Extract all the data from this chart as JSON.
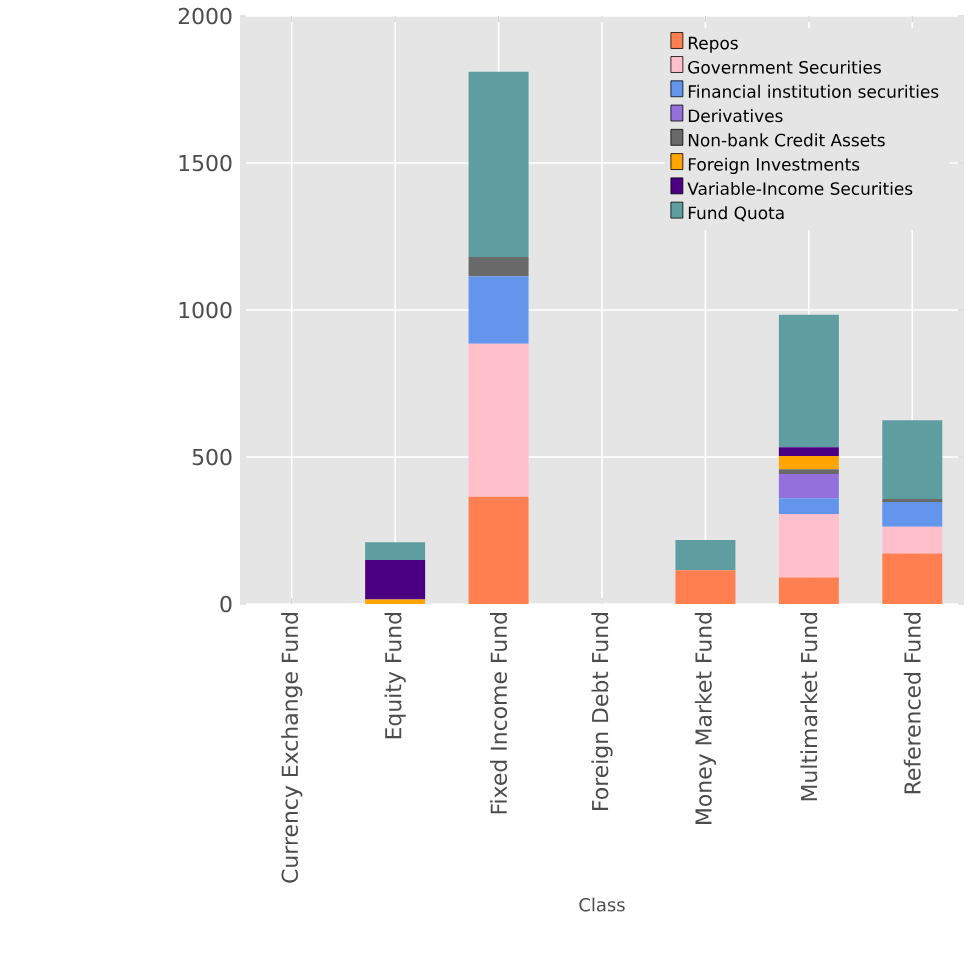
{
  "chart_data": {
    "type": "bar",
    "stacked": true,
    "xlabel": "Class",
    "categories": [
      "Currency Exchange Fund",
      "Equity Fund",
      "Fixed Income Fund",
      "Foreign Debt Fund",
      "Money Market Fund",
      "Multimarket Fund",
      "Referenced Fund"
    ],
    "series": [
      {
        "name": "Repos",
        "color": "#ff7f50",
        "values": [
          0,
          0,
          365,
          0,
          115,
          90,
          172
        ]
      },
      {
        "name": "Government Securities",
        "color": "#ffc0cb",
        "values": [
          0,
          null,
          520,
          0,
          0,
          216,
          91
        ]
      },
      {
        "name": "Financial institution securities",
        "color": "#6495ed",
        "values": [
          0,
          0,
          230,
          0,
          0,
          54,
          84
        ]
      },
      {
        "name": "Derivatives",
        "color": "#9370db",
        "values": [
          0,
          null,
          0,
          0,
          0,
          82,
          0
        ]
      },
      {
        "name": "Non-bank Credit Assets",
        "color": "#696969",
        "values": [
          0,
          0,
          65,
          0,
          0,
          16,
          10
        ]
      },
      {
        "name": "Foreign Investments",
        "color": "#ffa500",
        "values": [
          0,
          15,
          0,
          0,
          0,
          45,
          0
        ]
      },
      {
        "name": "Variable-Income Securities",
        "color": "#4b0082",
        "values": [
          0,
          135,
          0,
          0,
          0,
          30,
          0
        ]
      },
      {
        "name": "Fund Quota",
        "color": "#5f9ea0",
        "values": [
          0,
          60,
          630,
          0,
          103,
          451,
          268
        ]
      }
    ],
    "ylim": [
      0,
      2000
    ],
    "yticks": [
      0,
      500,
      1000,
      1500,
      2000
    ],
    "grid": true,
    "legend": "top right"
  }
}
